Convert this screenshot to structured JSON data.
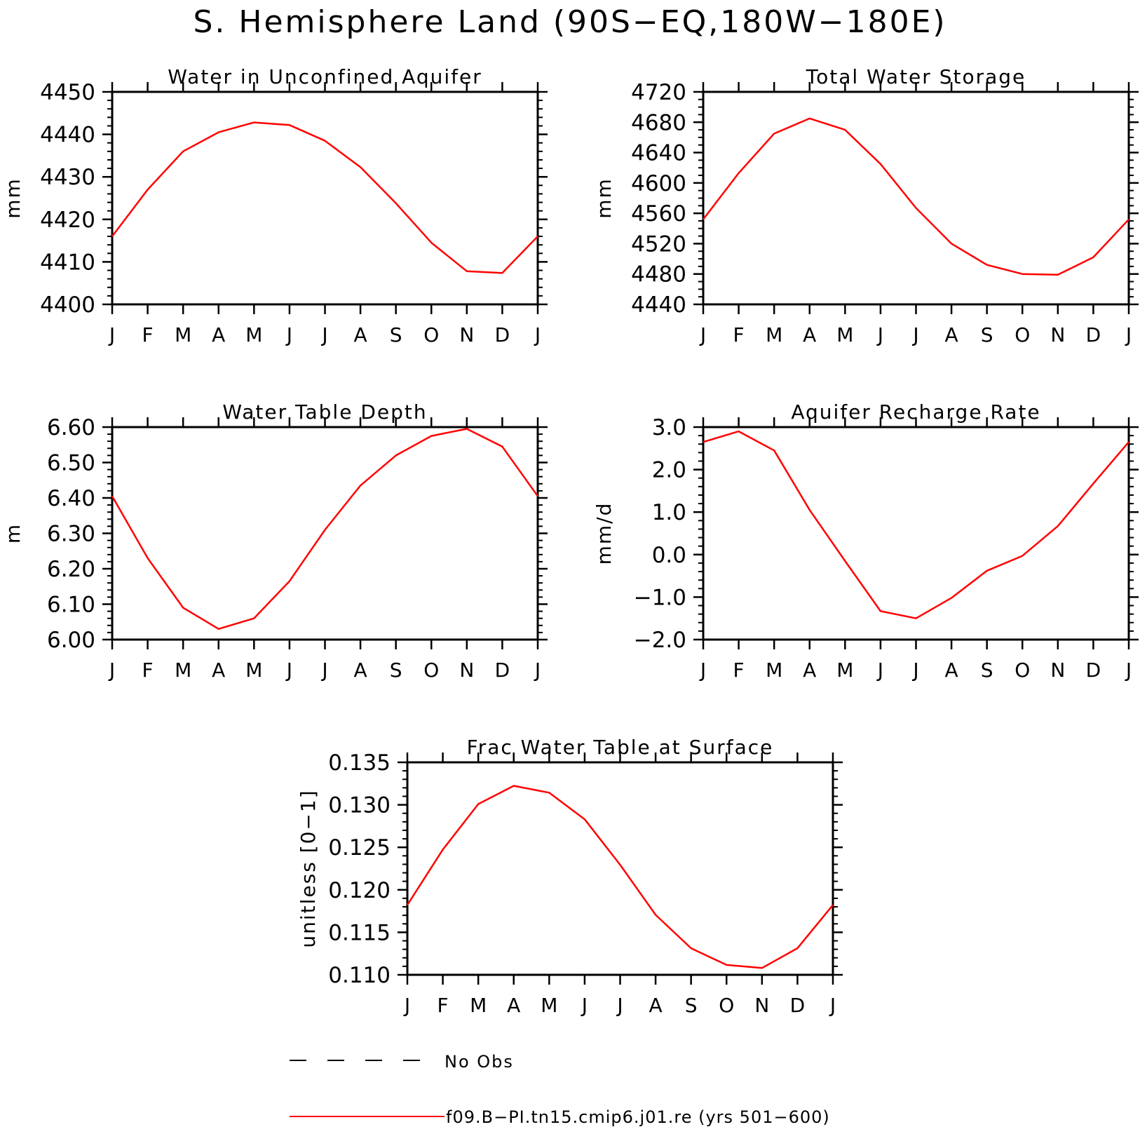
{
  "figure": {
    "title": "S. Hemisphere Land (90S−EQ,180W−180E)",
    "line_color": "#ff0000",
    "axis_color": "#000000"
  },
  "chart_data": [
    {
      "type": "line",
      "title": "Water in Unconfined Aquifer",
      "xlabel": "",
      "ylabel": "mm",
      "categories": [
        "J",
        "F",
        "M",
        "A",
        "M",
        "J",
        "J",
        "A",
        "S",
        "O",
        "N",
        "D",
        "J"
      ],
      "ylim": [
        4400,
        4450
      ],
      "yticks": [
        "4400",
        "4410",
        "4420",
        "4430",
        "4440",
        "4450"
      ],
      "minor_per_major": 5,
      "series": [
        {
          "values": [
            4416,
            4427,
            4436,
            4440.5,
            4442.8,
            4442.2,
            4438.5,
            4432.3,
            4423.8,
            4414.5,
            4407.8,
            4407.4,
            4416
          ]
        }
      ]
    },
    {
      "type": "line",
      "title": "Total Water Storage",
      "xlabel": "",
      "ylabel": "mm",
      "categories": [
        "J",
        "F",
        "M",
        "A",
        "M",
        "J",
        "J",
        "A",
        "S",
        "O",
        "N",
        "D",
        "J"
      ],
      "ylim": [
        4440,
        4720
      ],
      "yticks": [
        "4440",
        "4480",
        "4520",
        "4560",
        "4600",
        "4640",
        "4680",
        "4720"
      ],
      "minor_per_major": 4,
      "series": [
        {
          "values": [
            4552,
            4613,
            4665,
            4685,
            4670,
            4625,
            4567,
            4520,
            4492,
            4480,
            4479,
            4502,
            4552
          ]
        }
      ]
    },
    {
      "type": "line",
      "title": "Water Table Depth",
      "xlabel": "",
      "ylabel": "m",
      "categories": [
        "J",
        "F",
        "M",
        "A",
        "M",
        "J",
        "J",
        "A",
        "S",
        "O",
        "N",
        "D",
        "J"
      ],
      "ylim": [
        6.0,
        6.6
      ],
      "yticks": [
        "6.00",
        "6.10",
        "6.20",
        "6.30",
        "6.40",
        "6.50",
        "6.60"
      ],
      "minor_per_major": 5,
      "series": [
        {
          "values": [
            6.405,
            6.23,
            6.09,
            6.03,
            6.06,
            6.165,
            6.31,
            6.435,
            6.52,
            6.575,
            6.595,
            6.545,
            6.405
          ]
        }
      ]
    },
    {
      "type": "line",
      "title": "Aquifer Recharge Rate",
      "xlabel": "",
      "ylabel": "mm/d",
      "categories": [
        "J",
        "F",
        "M",
        "A",
        "M",
        "J",
        "J",
        "A",
        "S",
        "O",
        "N",
        "D",
        "J"
      ],
      "ylim": [
        -2.0,
        3.0
      ],
      "yticks": [
        "−2.0",
        "−1.0",
        "0.0",
        "1.0",
        "2.0",
        "3.0"
      ],
      "minor_per_major": 5,
      "series": [
        {
          "values": [
            2.65,
            2.9,
            2.45,
            1.05,
            -0.15,
            -1.33,
            -1.5,
            -1.02,
            -0.38,
            -0.03,
            0.67,
            1.67,
            2.65
          ]
        }
      ]
    },
    {
      "type": "line",
      "title": "Frac Water Table at Surface",
      "xlabel": "",
      "ylabel": "unitless [0−1]",
      "categories": [
        "J",
        "F",
        "M",
        "A",
        "M",
        "J",
        "J",
        "A",
        "S",
        "O",
        "N",
        "D",
        "J"
      ],
      "ylim": [
        0.108,
        0.136
      ],
      "yticks": [
        "0.110",
        "0.115",
        "0.120",
        "0.125",
        "0.130",
        "0.135"
      ],
      "minor_per_major": 5,
      "series": [
        {
          "values": [
            0.1172,
            0.1245,
            0.1305,
            0.1329,
            0.132,
            0.1285,
            0.1225,
            0.1159,
            0.1115,
            0.1093,
            0.1089,
            0.1115,
            0.1172
          ]
        }
      ]
    }
  ],
  "legend": {
    "obs_label": "No Obs",
    "model_label": "f09.B−PI.tn15.cmip6.j01.re (yrs 501−600)"
  }
}
